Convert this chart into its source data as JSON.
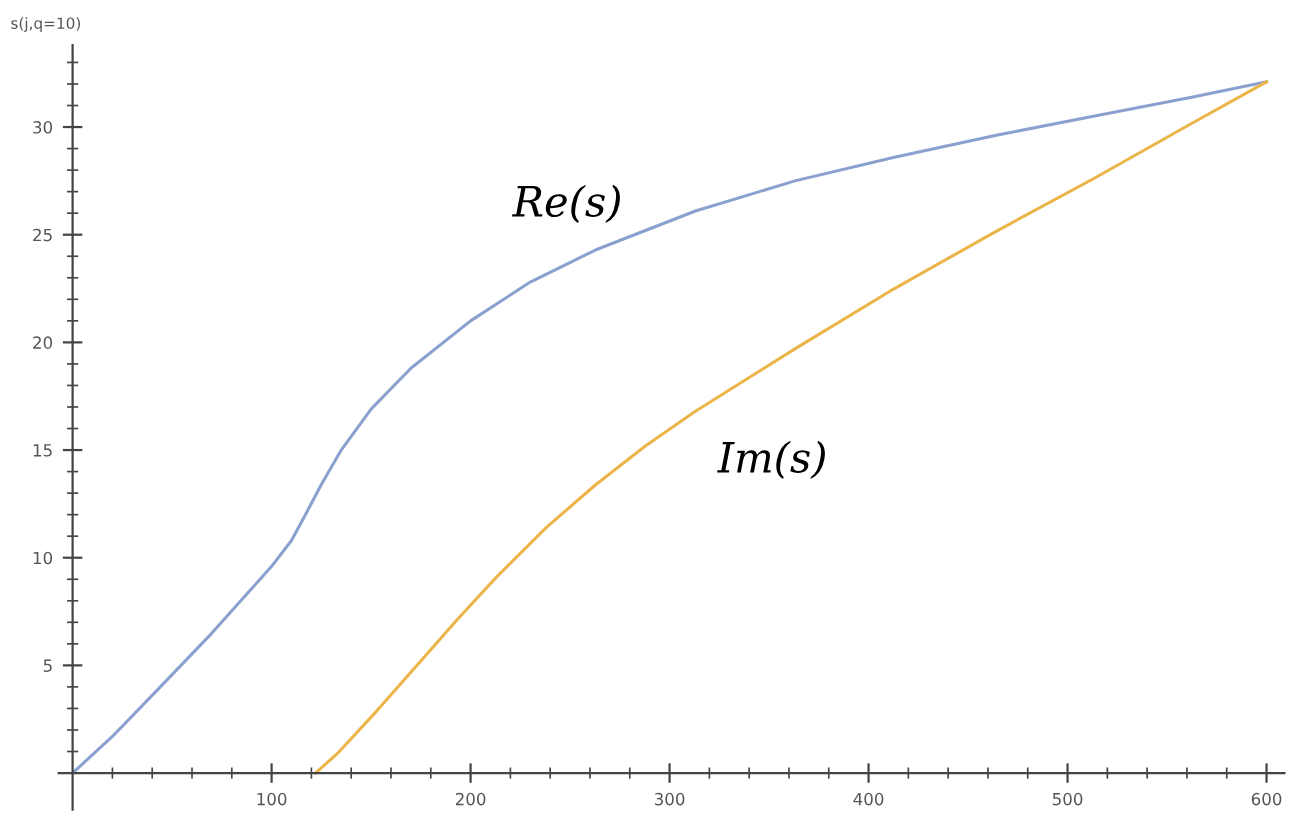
{
  "chart_data": {
    "type": "line",
    "ylabel": "s(j,q=10)",
    "xlim": [
      -7,
      609
    ],
    "ylim": [
      -1.7,
      33.8
    ],
    "xticks": [
      {
        "value": 20,
        "label": null
      },
      {
        "value": 40,
        "label": null
      },
      {
        "value": 60,
        "label": null
      },
      {
        "value": 80,
        "label": null
      },
      100,
      {
        "value": 120,
        "label": null
      },
      {
        "value": 140,
        "label": null
      },
      {
        "value": 160,
        "label": null
      },
      {
        "value": 180,
        "label": null
      },
      200,
      {
        "value": 220,
        "label": null
      },
      {
        "value": 240,
        "label": null
      },
      {
        "value": 260,
        "label": null
      },
      {
        "value": 280,
        "label": null
      },
      300,
      {
        "value": 320,
        "label": null
      },
      {
        "value": 340,
        "label": null
      },
      {
        "value": 360,
        "label": null
      },
      {
        "value": 380,
        "label": null
      },
      400,
      {
        "value": 420,
        "label": null
      },
      {
        "value": 440,
        "label": null
      },
      {
        "value": 460,
        "label": null
      },
      {
        "value": 480,
        "label": null
      },
      500,
      {
        "value": 520,
        "label": null
      },
      {
        "value": 540,
        "label": null
      },
      {
        "value": 560,
        "label": null
      },
      {
        "value": 580,
        "label": null
      },
      600
    ],
    "yticks": [
      {
        "value": 1,
        "label": null
      },
      {
        "value": 2,
        "label": null
      },
      {
        "value": 3,
        "label": null
      },
      {
        "value": 4,
        "label": null
      },
      5,
      {
        "value": 6,
        "label": null
      },
      {
        "value": 7,
        "label": null
      },
      {
        "value": 8,
        "label": null
      },
      {
        "value": 9,
        "label": null
      },
      10,
      {
        "value": 11,
        "label": null
      },
      {
        "value": 12,
        "label": null
      },
      {
        "value": 13,
        "label": null
      },
      {
        "value": 14,
        "label": null
      },
      15,
      {
        "value": 16,
        "label": null
      },
      {
        "value": 17,
        "label": null
      },
      {
        "value": 18,
        "label": null
      },
      {
        "value": 19,
        "label": null
      },
      20,
      {
        "value": 21,
        "label": null
      },
      {
        "value": 22,
        "label": null
      },
      {
        "value": 23,
        "label": null
      },
      {
        "value": 24,
        "label": null
      },
      25,
      {
        "value": 26,
        "label": null
      },
      {
        "value": 27,
        "label": null
      },
      {
        "value": 28,
        "label": null
      },
      {
        "value": 29,
        "label": null
      },
      30,
      {
        "value": 31,
        "label": null
      },
      {
        "value": 32,
        "label": null
      },
      {
        "value": 33,
        "label": null
      }
    ],
    "grid": false,
    "legend": false,
    "series": [
      {
        "name": "Re(s)",
        "color": "#8aa1cf",
        "x": [
          0,
          20,
          43,
          70,
          100,
          110,
          117,
          125,
          135,
          150,
          170,
          200,
          230,
          263,
          313,
          363,
          413,
          463,
          513,
          563,
          600
        ],
        "values": [
          0,
          1.7,
          3.9,
          6.5,
          9.6,
          10.8,
          12.0,
          13.4,
          15.0,
          16.9,
          18.8,
          21.0,
          22.8,
          24.3,
          26.1,
          27.5,
          28.6,
          29.6,
          30.5,
          31.4,
          32.1
        ]
      },
      {
        "name": "Im(s)",
        "color": "#ebb54a",
        "x": [
          122,
          133,
          153,
          173,
          193,
          213,
          238,
          263,
          288,
          313,
          363,
          413,
          463,
          513,
          563,
          600
        ],
        "values": [
          0,
          0.9,
          2.9,
          5.0,
          7.1,
          9.1,
          11.4,
          13.4,
          15.2,
          16.8,
          19.7,
          22.5,
          25.1,
          27.6,
          30.2,
          32.1
        ]
      }
    ]
  }
}
